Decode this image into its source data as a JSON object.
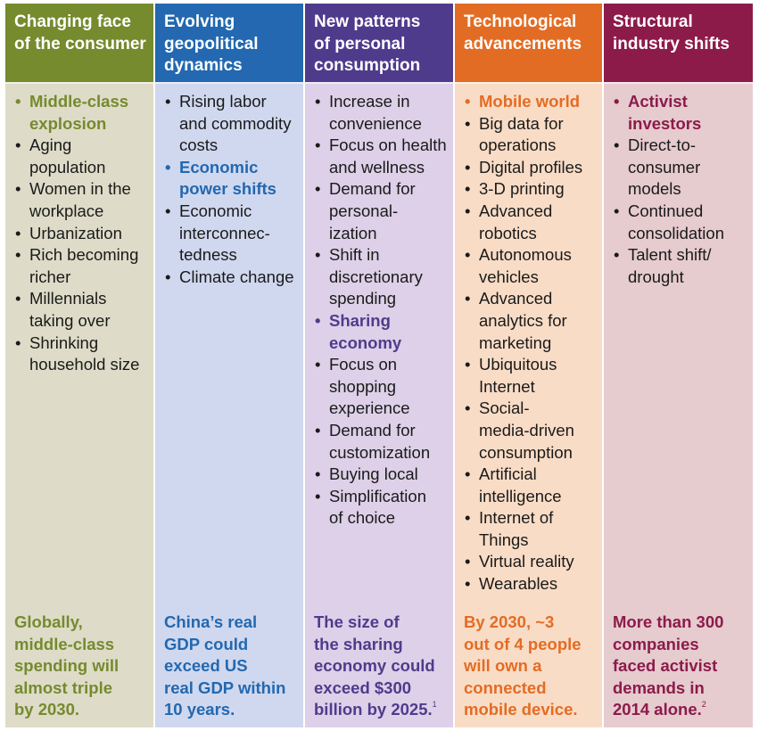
{
  "columns": [
    {
      "id": "consumer",
      "header_lines": [
        "Changing face",
        "of the consumer"
      ],
      "header_color": "#768a2e",
      "body_color": "#dedcc8",
      "accent": "#768a2e",
      "items": [
        {
          "lines": [
            "Middle-class",
            "explosion"
          ],
          "highlight": true
        },
        {
          "lines": [
            "Aging",
            "population"
          ]
        },
        {
          "lines": [
            "Women in the",
            "workplace"
          ]
        },
        {
          "lines": [
            "Urbanization"
          ]
        },
        {
          "lines": [
            "Rich becoming",
            "richer"
          ]
        },
        {
          "lines": [
            "Millennials",
            "taking over"
          ]
        },
        {
          "lines": [
            "Shrinking",
            "household size"
          ]
        }
      ],
      "footnote_lines": [
        "Globally,",
        "middle-class",
        "spending will",
        "almost triple",
        "by 2030."
      ],
      "footnote_sup": ""
    },
    {
      "id": "geopolitical",
      "header_lines": [
        "Evolving",
        "geopolitical",
        "dynamics"
      ],
      "header_color": "#2368b0",
      "body_color": "#d0d8ef",
      "accent": "#2368b0",
      "items": [
        {
          "lines": [
            "Rising labor",
            "and commodity",
            "costs"
          ]
        },
        {
          "lines": [
            "Economic",
            "power shifts"
          ],
          "highlight": true
        },
        {
          "lines": [
            "Economic",
            "interconnec-",
            "tedness"
          ]
        },
        {
          "lines": [
            "Climate change"
          ]
        }
      ],
      "footnote_lines": [
        "China’s real",
        "GDP could",
        "exceed US",
        "real GDP within",
        "10 years."
      ],
      "footnote_sup": ""
    },
    {
      "id": "consumption",
      "header_lines": [
        "New patterns",
        "of personal",
        "consumption"
      ],
      "header_color": "#4f3b8c",
      "body_color": "#ddd0e8",
      "accent": "#4f3b8c",
      "items": [
        {
          "lines": [
            "Increase in",
            "convenience"
          ]
        },
        {
          "lines": [
            "Focus on health",
            "and wellness"
          ]
        },
        {
          "lines": [
            "Demand for",
            "personal-",
            "ization"
          ]
        },
        {
          "lines": [
            "Shift in",
            "discretionary",
            "spending"
          ]
        },
        {
          "lines": [
            "Sharing",
            "economy"
          ],
          "highlight": true
        },
        {
          "lines": [
            "Focus on",
            "shopping",
            "experience"
          ]
        },
        {
          "lines": [
            "Demand for",
            "customization"
          ]
        },
        {
          "lines": [
            "Buying local"
          ]
        },
        {
          "lines": [
            "Simplification",
            "of choice"
          ]
        }
      ],
      "footnote_lines": [
        "The size of",
        "the sharing",
        "economy could",
        "exceed $300",
        "billion by 2025."
      ],
      "footnote_sup": "1"
    },
    {
      "id": "technology",
      "header_lines": [
        "Technological",
        "advancements"
      ],
      "header_color": "#e36c24",
      "body_color": "#f9dcc6",
      "accent": "#e36c24",
      "items": [
        {
          "lines": [
            "Mobile world"
          ],
          "highlight": true
        },
        {
          "lines": [
            "Big data for",
            "operations"
          ]
        },
        {
          "lines": [
            "Digital profiles"
          ]
        },
        {
          "lines": [
            "3-D printing"
          ]
        },
        {
          "lines": [
            "Advanced",
            "robotics"
          ]
        },
        {
          "lines": [
            "Autonomous",
            "vehicles"
          ]
        },
        {
          "lines": [
            "Advanced",
            "analytics for",
            "marketing"
          ]
        },
        {
          "lines": [
            "Ubiquitous",
            "Internet"
          ]
        },
        {
          "lines": [
            "Social-",
            "media-driven",
            "consumption"
          ]
        },
        {
          "lines": [
            "Artificial",
            "intelligence"
          ]
        },
        {
          "lines": [
            "Internet of",
            "Things"
          ]
        },
        {
          "lines": [
            "Virtual reality"
          ]
        },
        {
          "lines": [
            "Wearables"
          ]
        }
      ],
      "footnote_lines": [
        "By 2030, ~3",
        "out of 4 people",
        "will own a",
        "connected",
        "mobile device."
      ],
      "footnote_sup": ""
    },
    {
      "id": "industry",
      "header_lines": [
        "Structural",
        "industry shifts"
      ],
      "header_color": "#8c1b4a",
      "body_color": "#e6cbcf",
      "accent": "#8c1b4a",
      "items": [
        {
          "lines": [
            "Activist",
            "investors"
          ],
          "highlight": true
        },
        {
          "lines": [
            "Direct-to-",
            "consumer",
            "models"
          ]
        },
        {
          "lines": [
            "Continued",
            "consolidation"
          ]
        },
        {
          "lines": [
            "Talent shift/",
            "drought"
          ]
        }
      ],
      "footnote_lines": [
        "More than 300",
        "companies",
        "faced activist",
        "demands in",
        "2014 alone."
      ],
      "footnote_sup": "2"
    }
  ]
}
